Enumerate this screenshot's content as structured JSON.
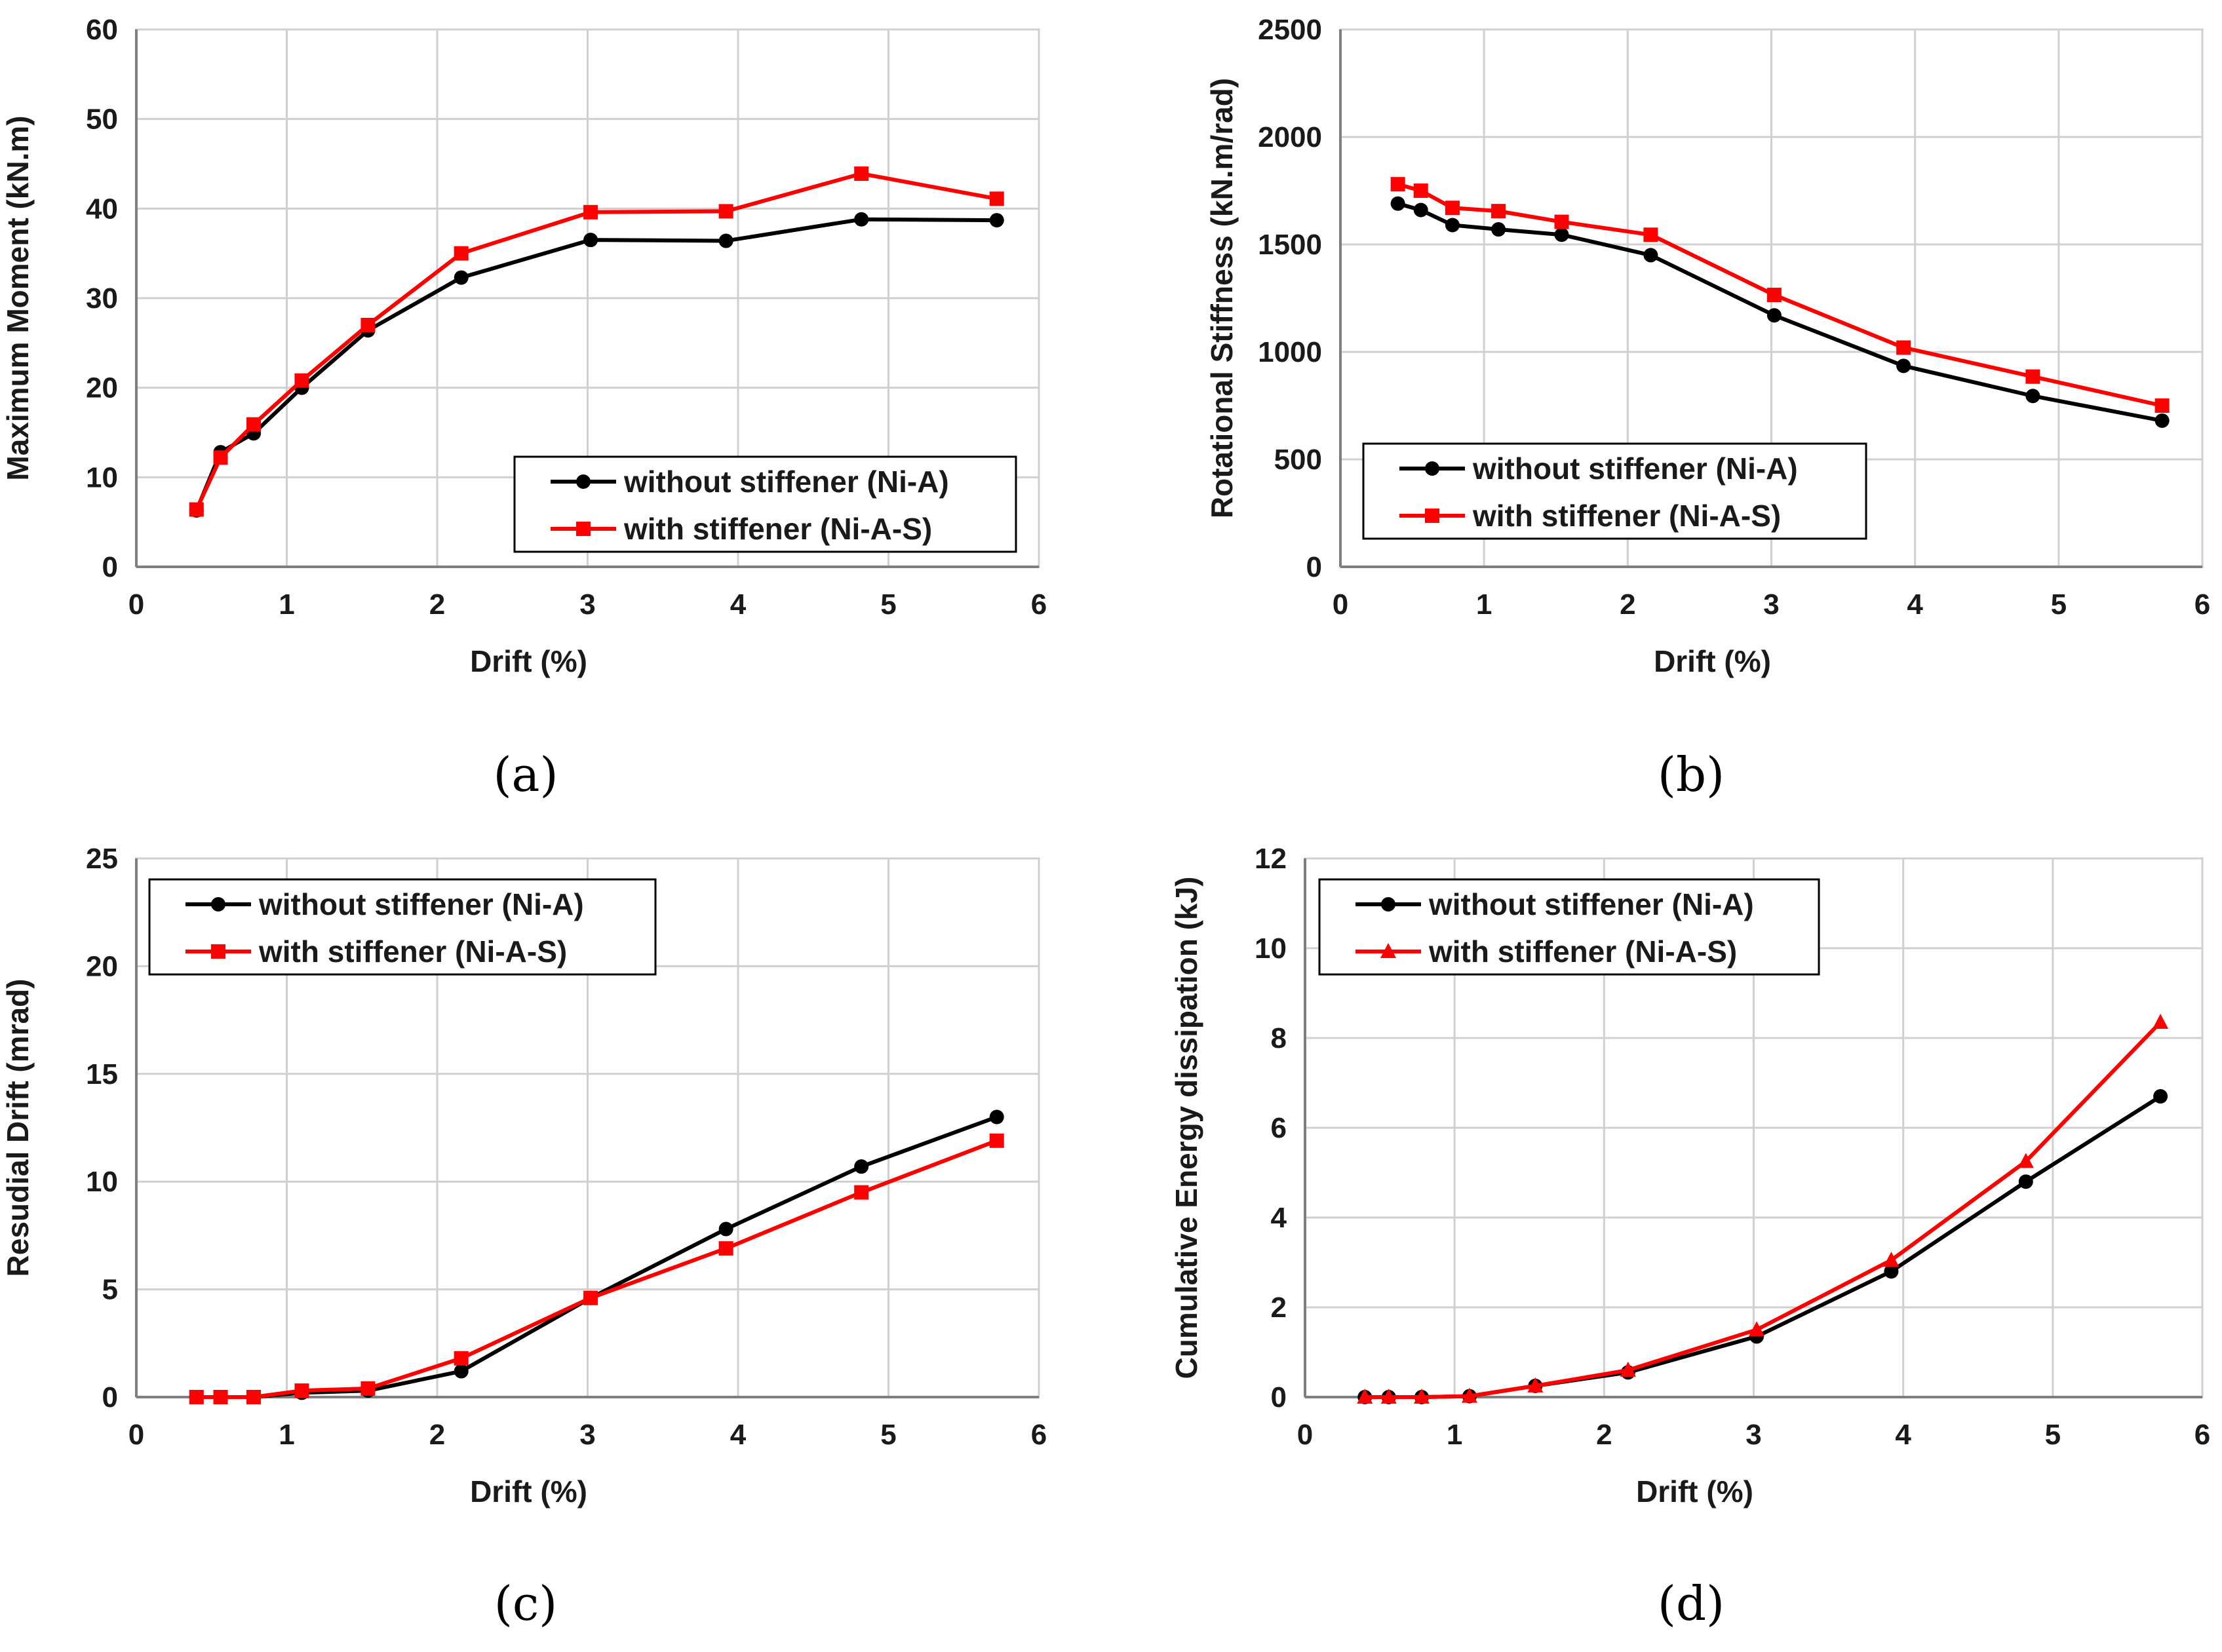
{
  "colors": {
    "series_black": "#000000",
    "series_red": "#ff0000",
    "grid": "#d0d0d0",
    "axis": "#7f7f7f"
  },
  "chart_data": [
    {
      "type": "line",
      "caption": "(a)",
      "xlabel": "Drift (%)",
      "ylabel": "Maximum Moment (kN.m)",
      "xlim": [
        0,
        6
      ],
      "ylim": [
        0,
        60
      ],
      "xticks": [
        0,
        1,
        2,
        3,
        4,
        5,
        6
      ],
      "yticks": [
        0,
        10,
        20,
        30,
        40,
        50,
        60
      ],
      "legend_position": "bottom-right",
      "series": [
        {
          "name": "without stiffener (Ni-A)",
          "color": "#000000",
          "marker": "circle",
          "x": [
            0.4,
            0.56,
            0.78,
            1.1,
            1.54,
            2.16,
            3.02,
            3.92,
            4.82,
            5.72
          ],
          "y": [
            6.3,
            12.8,
            14.9,
            20.0,
            26.4,
            32.3,
            36.5,
            36.4,
            38.8,
            38.7
          ]
        },
        {
          "name": "with stiffener (Ni-A-S)",
          "color": "#ff0000",
          "marker": "square",
          "x": [
            0.4,
            0.56,
            0.78,
            1.1,
            1.54,
            2.16,
            3.02,
            3.92,
            4.82,
            5.72
          ],
          "y": [
            6.4,
            12.2,
            15.9,
            20.8,
            27.0,
            35.0,
            39.6,
            39.7,
            43.9,
            41.1
          ]
        }
      ]
    },
    {
      "type": "line",
      "caption": "(b)",
      "xlabel": "Drift (%)",
      "ylabel": "Rotational Stiffness (kN.m/rad)",
      "xlim": [
        0,
        6
      ],
      "ylim": [
        0,
        2500
      ],
      "xticks": [
        0,
        1,
        2,
        3,
        4,
        5,
        6
      ],
      "yticks": [
        0,
        500,
        1000,
        1500,
        2000,
        2500
      ],
      "legend_position": "bottom-left",
      "series": [
        {
          "name": "without stiffener (Ni-A)",
          "color": "#000000",
          "marker": "circle",
          "x": [
            0.4,
            0.56,
            0.78,
            1.1,
            1.54,
            2.16,
            3.02,
            3.92,
            4.82,
            5.72
          ],
          "y": [
            1690,
            1660,
            1590,
            1570,
            1545,
            1450,
            1170,
            935,
            795,
            680
          ]
        },
        {
          "name": "with stiffener (Ni-A-S)",
          "color": "#ff0000",
          "marker": "square",
          "x": [
            0.4,
            0.56,
            0.78,
            1.1,
            1.54,
            2.16,
            3.02,
            3.92,
            4.82,
            5.72
          ],
          "y": [
            1780,
            1750,
            1670,
            1655,
            1605,
            1545,
            1265,
            1020,
            885,
            750
          ]
        }
      ]
    },
    {
      "type": "line",
      "caption": "(c)",
      "xlabel": "Drift (%)",
      "ylabel": "Resudial Drift (mrad)",
      "xlim": [
        0,
        6
      ],
      "ylim": [
        0,
        25
      ],
      "xticks": [
        0,
        1,
        2,
        3,
        4,
        5,
        6
      ],
      "yticks": [
        0,
        5,
        10,
        15,
        20,
        25
      ],
      "legend_position": "top-left",
      "series": [
        {
          "name": "without stiffener (Ni-A)",
          "color": "#000000",
          "marker": "circle",
          "x": [
            0.4,
            0.56,
            0.78,
            1.1,
            1.54,
            2.16,
            3.02,
            3.92,
            4.82,
            5.72
          ],
          "y": [
            0.0,
            0.0,
            0.0,
            0.2,
            0.3,
            1.2,
            4.6,
            7.8,
            10.7,
            13.0
          ]
        },
        {
          "name": "with stiffener (Ni-A-S)",
          "color": "#ff0000",
          "marker": "square",
          "x": [
            0.4,
            0.56,
            0.78,
            1.1,
            1.54,
            2.16,
            3.02,
            3.92,
            4.82,
            5.72
          ],
          "y": [
            0.0,
            0.0,
            0.0,
            0.3,
            0.4,
            1.8,
            4.6,
            6.9,
            9.5,
            11.9
          ]
        }
      ]
    },
    {
      "type": "line",
      "caption": "(d)",
      "xlabel": "Drift (%)",
      "ylabel": "Cumulative Energy dissipation (kJ)",
      "xlim": [
        0,
        6
      ],
      "ylim": [
        0,
        12
      ],
      "xticks": [
        0,
        1,
        2,
        3,
        4,
        5,
        6
      ],
      "yticks": [
        0,
        2,
        4,
        6,
        8,
        10,
        12
      ],
      "legend_position": "top-left",
      "series": [
        {
          "name": "without stiffener (Ni-A)",
          "color": "#000000",
          "marker": "circle",
          "x": [
            0.4,
            0.56,
            0.78,
            1.1,
            1.54,
            2.16,
            3.02,
            3.92,
            4.82,
            5.72
          ],
          "y": [
            0.0,
            0.0,
            0.0,
            0.02,
            0.25,
            0.55,
            1.35,
            2.8,
            4.8,
            6.7
          ]
        },
        {
          "name": "with stiffener (Ni-A-S)",
          "color": "#ff0000",
          "marker": "triangle",
          "x": [
            0.4,
            0.56,
            0.78,
            1.1,
            1.54,
            2.16,
            3.02,
            3.92,
            4.82,
            5.72
          ],
          "y": [
            0.0,
            0.0,
            0.0,
            0.02,
            0.25,
            0.6,
            1.5,
            3.05,
            5.25,
            8.35
          ]
        }
      ]
    }
  ]
}
